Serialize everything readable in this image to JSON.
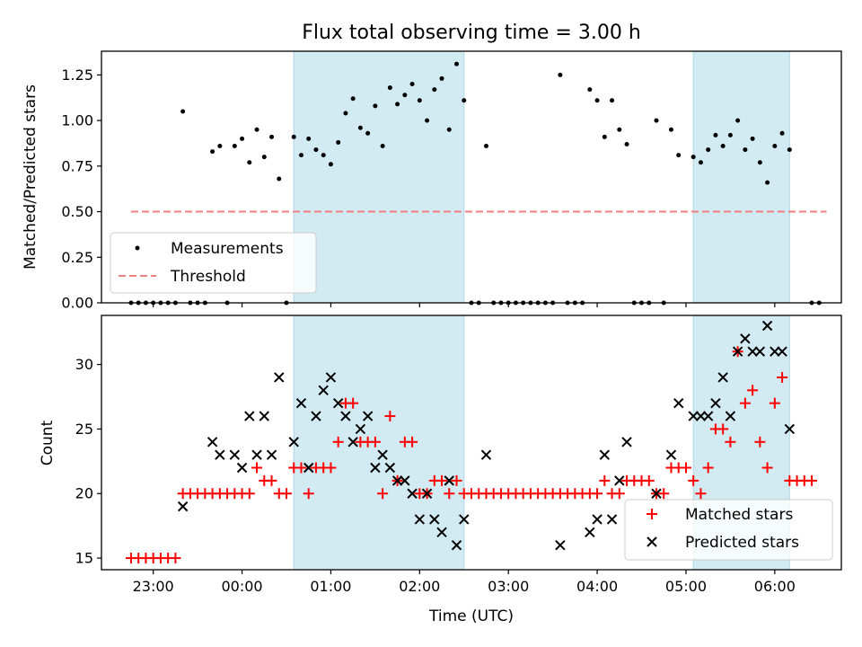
{
  "chart_data": [
    {
      "type": "scatter",
      "title": "Flux total observing time = 3.00 h",
      "xlabel": "",
      "ylabel": "Matched/Predicted stars",
      "ylim": [
        0,
        1.38
      ],
      "yticks": [
        "0.00",
        "0.25",
        "0.50",
        "0.75",
        "1.00",
        "1.25"
      ],
      "shaded_intervals": [
        [
          "00:35",
          "02:30"
        ],
        [
          "05:05",
          "06:10"
        ]
      ],
      "legend": {
        "placement": "lower-left",
        "entries": [
          "Measurements",
          "Threshold"
        ]
      },
      "colors": {
        "measurements": "#000000",
        "threshold": "#f08080",
        "shade": "#add8e6"
      },
      "threshold": {
        "value": 0.5,
        "x_start": "22:45",
        "x_end": "06:35"
      },
      "series": [
        {
          "name": "Measurements",
          "points": [
            [
              "22:45",
              0
            ],
            [
              "22:50",
              0
            ],
            [
              "22:55",
              0
            ],
            [
              "23:00",
              0
            ],
            [
              "23:05",
              0
            ],
            [
              "23:10",
              0
            ],
            [
              "23:15",
              0
            ],
            [
              "23:20",
              1.05
            ],
            [
              "23:25",
              0
            ],
            [
              "23:30",
              0
            ],
            [
              "23:35",
              0
            ],
            [
              "23:40",
              0.83
            ],
            [
              "23:45",
              0.86
            ],
            [
              "23:50",
              0
            ],
            [
              "23:55",
              0.86
            ],
            [
              "00:00",
              0.9
            ],
            [
              "00:05",
              0.77
            ],
            [
              "00:10",
              0.95
            ],
            [
              "00:15",
              0.8
            ],
            [
              "00:20",
              0.91
            ],
            [
              "00:25",
              0.68
            ],
            [
              "00:30",
              0
            ],
            [
              "00:35",
              0.91
            ],
            [
              "00:40",
              0.81
            ],
            [
              "00:45",
              0.9
            ],
            [
              "00:50",
              0.84
            ],
            [
              "00:55",
              0.81
            ],
            [
              "01:00",
              0.76
            ],
            [
              "01:05",
              0.88
            ],
            [
              "01:10",
              1.04
            ],
            [
              "01:15",
              1.12
            ],
            [
              "01:20",
              0.96
            ],
            [
              "01:25",
              0.93
            ],
            [
              "01:30",
              1.08
            ],
            [
              "01:35",
              0.86
            ],
            [
              "01:40",
              1.18
            ],
            [
              "01:45",
              1.09
            ],
            [
              "01:50",
              1.14
            ],
            [
              "01:55",
              1.2
            ],
            [
              "02:00",
              1.11
            ],
            [
              "02:05",
              1.0
            ],
            [
              "02:10",
              1.17
            ],
            [
              "02:15",
              1.23
            ],
            [
              "02:20",
              0.95
            ],
            [
              "02:25",
              1.31
            ],
            [
              "02:30",
              1.11
            ],
            [
              "02:35",
              0
            ],
            [
              "02:40",
              0
            ],
            [
              "02:45",
              0.86
            ],
            [
              "02:50",
              0
            ],
            [
              "02:55",
              0
            ],
            [
              "03:00",
              0
            ],
            [
              "03:05",
              0
            ],
            [
              "03:10",
              0
            ],
            [
              "03:15",
              0
            ],
            [
              "03:20",
              0
            ],
            [
              "03:25",
              0
            ],
            [
              "03:30",
              0
            ],
            [
              "03:35",
              1.25
            ],
            [
              "03:40",
              0
            ],
            [
              "03:45",
              0
            ],
            [
              "03:50",
              0
            ],
            [
              "03:55",
              1.17
            ],
            [
              "04:00",
              1.11
            ],
            [
              "04:05",
              0.91
            ],
            [
              "04:10",
              1.11
            ],
            [
              "04:15",
              0.95
            ],
            [
              "04:20",
              0.87
            ],
            [
              "04:25",
              0
            ],
            [
              "04:30",
              0
            ],
            [
              "04:35",
              0
            ],
            [
              "04:40",
              1.0
            ],
            [
              "04:45",
              0
            ],
            [
              "04:50",
              0.95
            ],
            [
              "04:55",
              0.81
            ],
            [
              "05:05",
              0.8
            ],
            [
              "05:10",
              0.77
            ],
            [
              "05:15",
              0.84
            ],
            [
              "05:20",
              0.92
            ],
            [
              "05:25",
              0.86
            ],
            [
              "05:30",
              0.92
            ],
            [
              "05:35",
              1.0
            ],
            [
              "05:40",
              0.84
            ],
            [
              "05:45",
              0.9
            ],
            [
              "05:50",
              0.77
            ],
            [
              "05:55",
              0.66
            ],
            [
              "06:00",
              0.86
            ],
            [
              "06:05",
              0.93
            ],
            [
              "06:10",
              0.84
            ],
            [
              "06:25",
              0
            ],
            [
              "06:30",
              0
            ]
          ]
        },
        {
          "name": "Threshold",
          "values": [
            0.5
          ]
        }
      ]
    },
    {
      "type": "scatter",
      "title": "",
      "xlabel": "Time (UTC)",
      "ylabel": "Count",
      "ylim": [
        14.1,
        33.8
      ],
      "xlim": [
        "22:25",
        "06:45"
      ],
      "yticks": [
        "15",
        "20",
        "25",
        "30"
      ],
      "xticks": [
        "23:00",
        "00:00",
        "01:00",
        "02:00",
        "03:00",
        "04:00",
        "05:00",
        "06:00"
      ],
      "shaded_intervals": [
        [
          "00:35",
          "02:30"
        ],
        [
          "05:05",
          "06:10"
        ]
      ],
      "legend": {
        "placement": "lower-right",
        "entries": [
          "Matched stars",
          "Predicted stars"
        ]
      },
      "colors": {
        "matched": "#ff0000",
        "predicted": "#000000",
        "shade": "#add8e6"
      },
      "series": [
        {
          "name": "Matched stars",
          "points": [
            [
              "22:45",
              15
            ],
            [
              "22:50",
              15
            ],
            [
              "22:55",
              15
            ],
            [
              "23:00",
              15
            ],
            [
              "23:05",
              15
            ],
            [
              "23:10",
              15
            ],
            [
              "23:15",
              15
            ],
            [
              "23:20",
              20
            ],
            [
              "23:25",
              20
            ],
            [
              "23:30",
              20
            ],
            [
              "23:35",
              20
            ],
            [
              "23:40",
              20
            ],
            [
              "23:45",
              20
            ],
            [
              "23:50",
              20
            ],
            [
              "23:55",
              20
            ],
            [
              "00:00",
              20
            ],
            [
              "00:05",
              20
            ],
            [
              "00:10",
              22
            ],
            [
              "00:15",
              21
            ],
            [
              "00:20",
              21
            ],
            [
              "00:25",
              20
            ],
            [
              "00:30",
              20
            ],
            [
              "00:35",
              22
            ],
            [
              "00:40",
              22
            ],
            [
              "00:45",
              20
            ],
            [
              "00:50",
              22
            ],
            [
              "00:55",
              22
            ],
            [
              "01:00",
              22
            ],
            [
              "01:05",
              24
            ],
            [
              "01:10",
              27
            ],
            [
              "01:15",
              27
            ],
            [
              "01:20",
              24
            ],
            [
              "01:25",
              24
            ],
            [
              "01:30",
              24
            ],
            [
              "01:35",
              20
            ],
            [
              "01:40",
              26
            ],
            [
              "01:45",
              21
            ],
            [
              "01:50",
              24
            ],
            [
              "01:55",
              24
            ],
            [
              "02:00",
              20
            ],
            [
              "02:05",
              20
            ],
            [
              "02:10",
              21
            ],
            [
              "02:15",
              21
            ],
            [
              "02:20",
              20
            ],
            [
              "02:25",
              21
            ],
            [
              "02:30",
              20
            ],
            [
              "02:35",
              20
            ],
            [
              "02:40",
              20
            ],
            [
              "02:45",
              20
            ],
            [
              "02:50",
              20
            ],
            [
              "02:55",
              20
            ],
            [
              "03:00",
              20
            ],
            [
              "03:05",
              20
            ],
            [
              "03:10",
              20
            ],
            [
              "03:15",
              20
            ],
            [
              "03:20",
              20
            ],
            [
              "03:25",
              20
            ],
            [
              "03:30",
              20
            ],
            [
              "03:35",
              20
            ],
            [
              "03:40",
              20
            ],
            [
              "03:45",
              20
            ],
            [
              "03:50",
              20
            ],
            [
              "03:55",
              20
            ],
            [
              "04:00",
              20
            ],
            [
              "04:05",
              21
            ],
            [
              "04:10",
              20
            ],
            [
              "04:15",
              20
            ],
            [
              "04:20",
              21
            ],
            [
              "04:25",
              21
            ],
            [
              "04:30",
              21
            ],
            [
              "04:35",
              21
            ],
            [
              "04:40",
              20
            ],
            [
              "04:45",
              20
            ],
            [
              "04:50",
              22
            ],
            [
              "04:55",
              22
            ],
            [
              "05:00",
              22
            ],
            [
              "05:05",
              21
            ],
            [
              "05:10",
              20
            ],
            [
              "05:15",
              22
            ],
            [
              "05:20",
              25
            ],
            [
              "05:25",
              25
            ],
            [
              "05:30",
              24
            ],
            [
              "05:35",
              31
            ],
            [
              "05:40",
              27
            ],
            [
              "05:45",
              28
            ],
            [
              "05:50",
              24
            ],
            [
              "05:55",
              22
            ],
            [
              "06:00",
              27
            ],
            [
              "06:05",
              29
            ],
            [
              "06:10",
              21
            ],
            [
              "06:15",
              21
            ],
            [
              "06:20",
              21
            ],
            [
              "06:25",
              21
            ]
          ]
        },
        {
          "name": "Predicted stars",
          "points": [
            [
              "23:20",
              19
            ],
            [
              "23:40",
              24
            ],
            [
              "23:45",
              23
            ],
            [
              "23:55",
              23
            ],
            [
              "00:00",
              22
            ],
            [
              "00:05",
              26
            ],
            [
              "00:10",
              23
            ],
            [
              "00:15",
              26
            ],
            [
              "00:20",
              23
            ],
            [
              "00:25",
              29
            ],
            [
              "00:35",
              24
            ],
            [
              "00:40",
              27
            ],
            [
              "00:45",
              22
            ],
            [
              "00:50",
              26
            ],
            [
              "00:55",
              28
            ],
            [
              "01:00",
              29
            ],
            [
              "01:05",
              27
            ],
            [
              "01:10",
              26
            ],
            [
              "01:15",
              24
            ],
            [
              "01:20",
              25
            ],
            [
              "01:25",
              26
            ],
            [
              "01:30",
              22
            ],
            [
              "01:35",
              23
            ],
            [
              "01:40",
              22
            ],
            [
              "01:45",
              21
            ],
            [
              "01:50",
              21
            ],
            [
              "01:55",
              20
            ],
            [
              "02:00",
              18
            ],
            [
              "02:05",
              20
            ],
            [
              "02:10",
              18
            ],
            [
              "02:15",
              17
            ],
            [
              "02:20",
              21
            ],
            [
              "02:25",
              16
            ],
            [
              "02:30",
              18
            ],
            [
              "02:45",
              23
            ],
            [
              "03:35",
              16
            ],
            [
              "03:55",
              17
            ],
            [
              "04:00",
              18
            ],
            [
              "04:05",
              23
            ],
            [
              "04:10",
              18
            ],
            [
              "04:15",
              21
            ],
            [
              "04:20",
              24
            ],
            [
              "04:40",
              20
            ],
            [
              "04:50",
              23
            ],
            [
              "04:55",
              27
            ],
            [
              "05:05",
              26
            ],
            [
              "05:10",
              26
            ],
            [
              "05:15",
              26
            ],
            [
              "05:20",
              27
            ],
            [
              "05:25",
              29
            ],
            [
              "05:30",
              26
            ],
            [
              "05:35",
              31
            ],
            [
              "05:40",
              32
            ],
            [
              "05:45",
              31
            ],
            [
              "05:50",
              31
            ],
            [
              "05:55",
              33
            ],
            [
              "06:00",
              31
            ],
            [
              "06:05",
              31
            ],
            [
              "06:10",
              25
            ]
          ]
        }
      ]
    }
  ]
}
